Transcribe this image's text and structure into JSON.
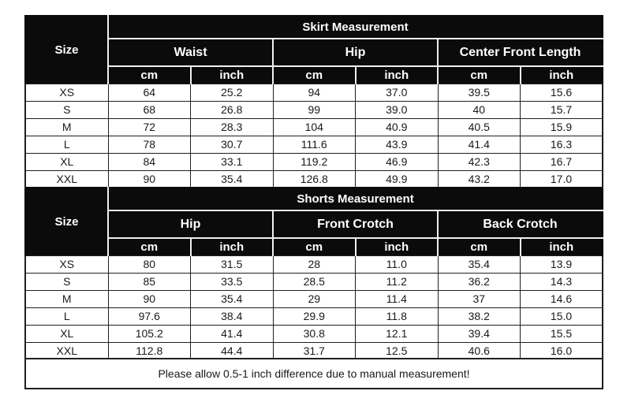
{
  "style": {
    "page-bg": "#ffffff",
    "header-bg": "#0b0b0b",
    "header-text": "#ffffff",
    "separator-light": "#f0f0f0",
    "border-dark": "#1f1f1f",
    "cell-bg": "#ffffff",
    "text-color": "#191919"
  },
  "tables": [
    {
      "name": "skirt",
      "title": "Skirt Measurement",
      "size_label": "Size",
      "groups": [
        "Waist",
        "Hip",
        "Center Front Length"
      ],
      "units": [
        "cm",
        "inch",
        "cm",
        "inch",
        "cm",
        "inch"
      ],
      "rows": [
        {
          "size": "XS",
          "values": [
            "64",
            "25.2",
            "94",
            "37.0",
            "39.5",
            "15.6"
          ]
        },
        {
          "size": "S",
          "values": [
            "68",
            "26.8",
            "99",
            "39.0",
            "40",
            "15.7"
          ]
        },
        {
          "size": "M",
          "values": [
            "72",
            "28.3",
            "104",
            "40.9",
            "40.5",
            "15.9"
          ]
        },
        {
          "size": "L",
          "values": [
            "78",
            "30.7",
            "111.6",
            "43.9",
            "41.4",
            "16.3"
          ]
        },
        {
          "size": "XL",
          "values": [
            "84",
            "33.1",
            "119.2",
            "46.9",
            "42.3",
            "16.7"
          ]
        },
        {
          "size": "XXL",
          "values": [
            "90",
            "35.4",
            "126.8",
            "49.9",
            "43.2",
            "17.0"
          ]
        }
      ]
    },
    {
      "name": "shorts",
      "title": "Shorts Measurement",
      "size_label": "Size",
      "groups": [
        "Hip",
        "Front Crotch",
        "Back Crotch"
      ],
      "units": [
        "cm",
        "inch",
        "cm",
        "inch",
        "cm",
        "inch"
      ],
      "rows": [
        {
          "size": "XS",
          "values": [
            "80",
            "31.5",
            "28",
            "11.0",
            "35.4",
            "13.9"
          ]
        },
        {
          "size": "S",
          "values": [
            "85",
            "33.5",
            "28.5",
            "11.2",
            "36.2",
            "14.3"
          ]
        },
        {
          "size": "M",
          "values": [
            "90",
            "35.4",
            "29",
            "11.4",
            "37",
            "14.6"
          ]
        },
        {
          "size": "L",
          "values": [
            "97.6",
            "38.4",
            "29.9",
            "11.8",
            "38.2",
            "15.0"
          ]
        },
        {
          "size": "XL",
          "values": [
            "105.2",
            "41.4",
            "30.8",
            "12.1",
            "39.4",
            "15.5"
          ]
        },
        {
          "size": "XXL",
          "values": [
            "112.8",
            "44.4",
            "31.7",
            "12.5",
            "40.6",
            "16.0"
          ]
        }
      ]
    }
  ],
  "footer": {
    "note": "Please allow 0.5-1 inch difference due to manual measurement!"
  }
}
